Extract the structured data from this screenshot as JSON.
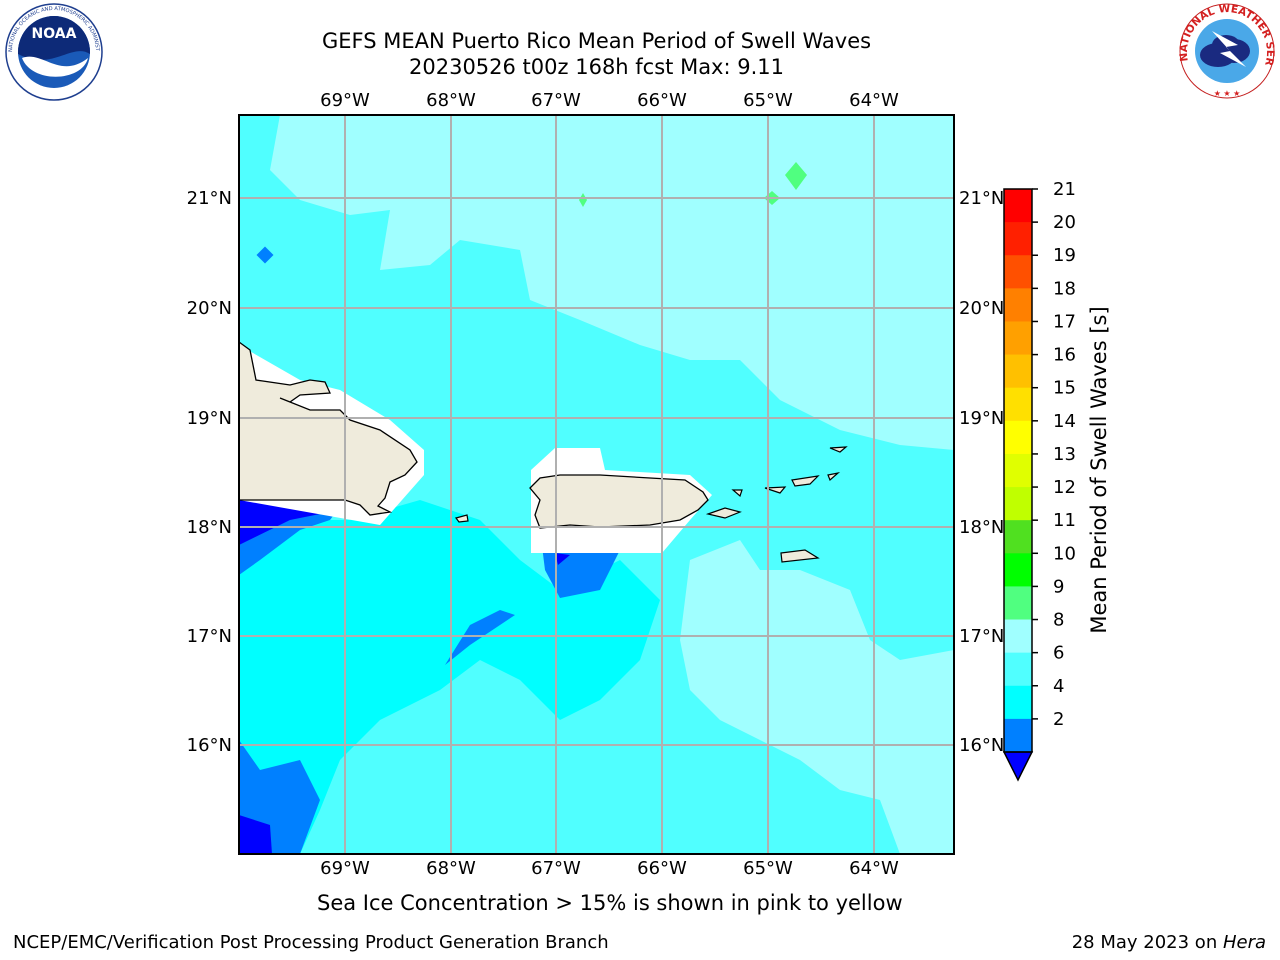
{
  "header": {
    "title_line1": "GEFS MEAN Puerto Rico Mean Period of Swell Waves",
    "title_line2": "20230526 t00z 168h fcst   Max: 9.11"
  },
  "logos": {
    "noaa_text": "NOAA",
    "noaa_ring_text": "NATIONAL OCEANIC AND ATMOSPHERIC ADMINISTRATION · U.S. DEPARTMENT OF COMMERCE",
    "nws_ring_text": "NATIONAL WEATHER SERVICE"
  },
  "map": {
    "lon_labels": [
      "69°W",
      "68°W",
      "67°W",
      "66°W",
      "65°W",
      "64°W"
    ],
    "lat_labels": [
      "21°N",
      "20°N",
      "19°N",
      "18°N",
      "17°N",
      "16°N"
    ],
    "background_color": "#a0ffff"
  },
  "colorbar": {
    "label": "Mean Period of Swell Waves [s]",
    "ticks": [
      "21",
      "20",
      "19",
      "18",
      "17",
      "16",
      "15",
      "14",
      "13",
      "12",
      "11",
      "10",
      "9",
      "8",
      "6",
      "4",
      "2"
    ],
    "colors": [
      "#ff0000",
      "#ff2000",
      "#ff5000",
      "#ff8000",
      "#ffa000",
      "#ffc000",
      "#ffe000",
      "#ffff00",
      "#e0ff00",
      "#c0ff00",
      "#50e020",
      "#00ff00",
      "#50ff80",
      "#a0ffff",
      "#50ffff",
      "#00ffff",
      "#0080ff"
    ],
    "extend_color": "#0000ff"
  },
  "caption": "Sea Ice Concentration > 15% is shown in pink to yellow",
  "footer": {
    "left": "NCEP/EMC/Verification Post Processing Product Generation Branch",
    "right_date": "28 May 2023 on ",
    "right_host": "Hera"
  }
}
